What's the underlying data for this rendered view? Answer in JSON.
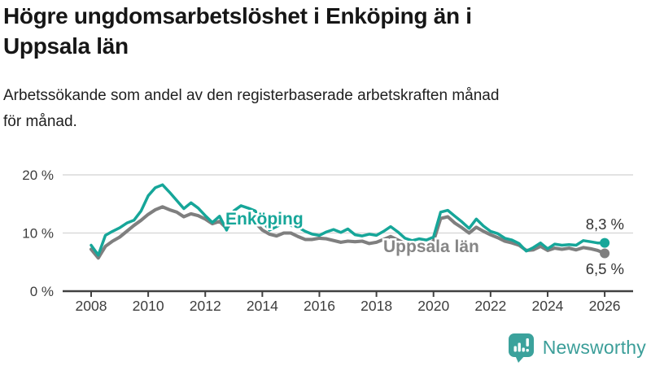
{
  "header": {
    "title_line1": "Högre ungdomsarbetslöshet i Enköping än i",
    "title_line2": "Uppsala län",
    "subtitle_line1": "Arbetssökande som andel av den registerbaserade arbetskraften månad",
    "subtitle_line2": "för månad."
  },
  "logo": {
    "text": "Newsworthy",
    "brand_color": "#3b9e99"
  },
  "chart_data": {
    "type": "line",
    "title": "Högre ungdomsarbetslöshet i Enköping än i Uppsala län",
    "subtitle": "Arbetssökande som andel av den registerbaserade arbetskraften månad för månad.",
    "x_unit": "year",
    "x_start": 2008.0,
    "x_step": 0.25,
    "xlim": [
      2008,
      2026.1
    ],
    "ylim": [
      0,
      20
    ],
    "grid": "horizontal",
    "legend_position": "inline-labels",
    "x_ticks": [
      "2008",
      "2010",
      "2012",
      "2014",
      "2016",
      "2018",
      "2020",
      "2022",
      "2024",
      "2026"
    ],
    "y_ticks": [
      {
        "value": 20,
        "label": "20 %"
      },
      {
        "value": 10,
        "label": "10 %"
      },
      {
        "value": 0,
        "label": "0 %"
      }
    ],
    "series": [
      {
        "name": "Enköping",
        "color": "#16a699",
        "end_label": "8,3 %",
        "end_value": 8.3,
        "values": [
          7.9,
          6.2,
          9.6,
          10.3,
          10.9,
          11.7,
          12.2,
          13.8,
          16.4,
          17.8,
          18.3,
          17.0,
          15.6,
          14.2,
          15.2,
          14.3,
          13.0,
          11.8,
          12.9,
          10.5,
          13.8,
          14.7,
          14.3,
          13.8,
          12.1,
          10.5,
          11.1,
          11.7,
          11.3,
          11.0,
          10.3,
          9.8,
          9.6,
          10.2,
          10.6,
          10.1,
          10.7,
          9.7,
          9.5,
          9.8,
          9.6,
          10.3,
          11.1,
          10.2,
          9.1,
          8.7,
          9.0,
          8.8,
          9.3,
          13.6,
          13.9,
          12.9,
          11.9,
          10.8,
          12.4,
          11.2,
          10.3,
          9.9,
          9.1,
          8.8,
          8.2,
          6.9,
          7.5,
          8.3,
          7.3,
          8.1,
          7.9,
          8.0,
          7.9,
          8.7,
          8.5,
          8.3,
          8.3
        ]
      },
      {
        "name": "Uppsala län",
        "color": "#7f7f7f",
        "end_label": "6,5 %",
        "end_value": 6.5,
        "values": [
          7.2,
          5.7,
          7.7,
          8.6,
          9.3,
          10.3,
          11.3,
          12.2,
          13.2,
          14.0,
          14.5,
          14.0,
          13.6,
          12.8,
          13.3,
          13.0,
          12.4,
          11.6,
          12.0,
          10.8,
          12.2,
          12.9,
          12.5,
          11.8,
          10.5,
          9.8,
          9.5,
          10.0,
          10.0,
          9.4,
          8.9,
          8.9,
          9.1,
          9.0,
          8.7,
          8.4,
          8.6,
          8.5,
          8.6,
          8.2,
          8.4,
          8.9,
          9.4,
          8.8,
          8.2,
          7.9,
          8.1,
          8.0,
          8.6,
          12.5,
          12.8,
          11.7,
          10.9,
          10.0,
          11.0,
          10.3,
          9.7,
          9.2,
          8.6,
          8.3,
          7.9,
          7.0,
          7.1,
          7.7,
          7.0,
          7.4,
          7.2,
          7.4,
          7.1,
          7.5,
          7.3,
          7.0,
          6.5
        ]
      }
    ],
    "colors": {
      "axis": "#414141",
      "gridline": "#d9d9d9",
      "tick_label": "#3d3d3d",
      "end_label": "#333333"
    }
  }
}
